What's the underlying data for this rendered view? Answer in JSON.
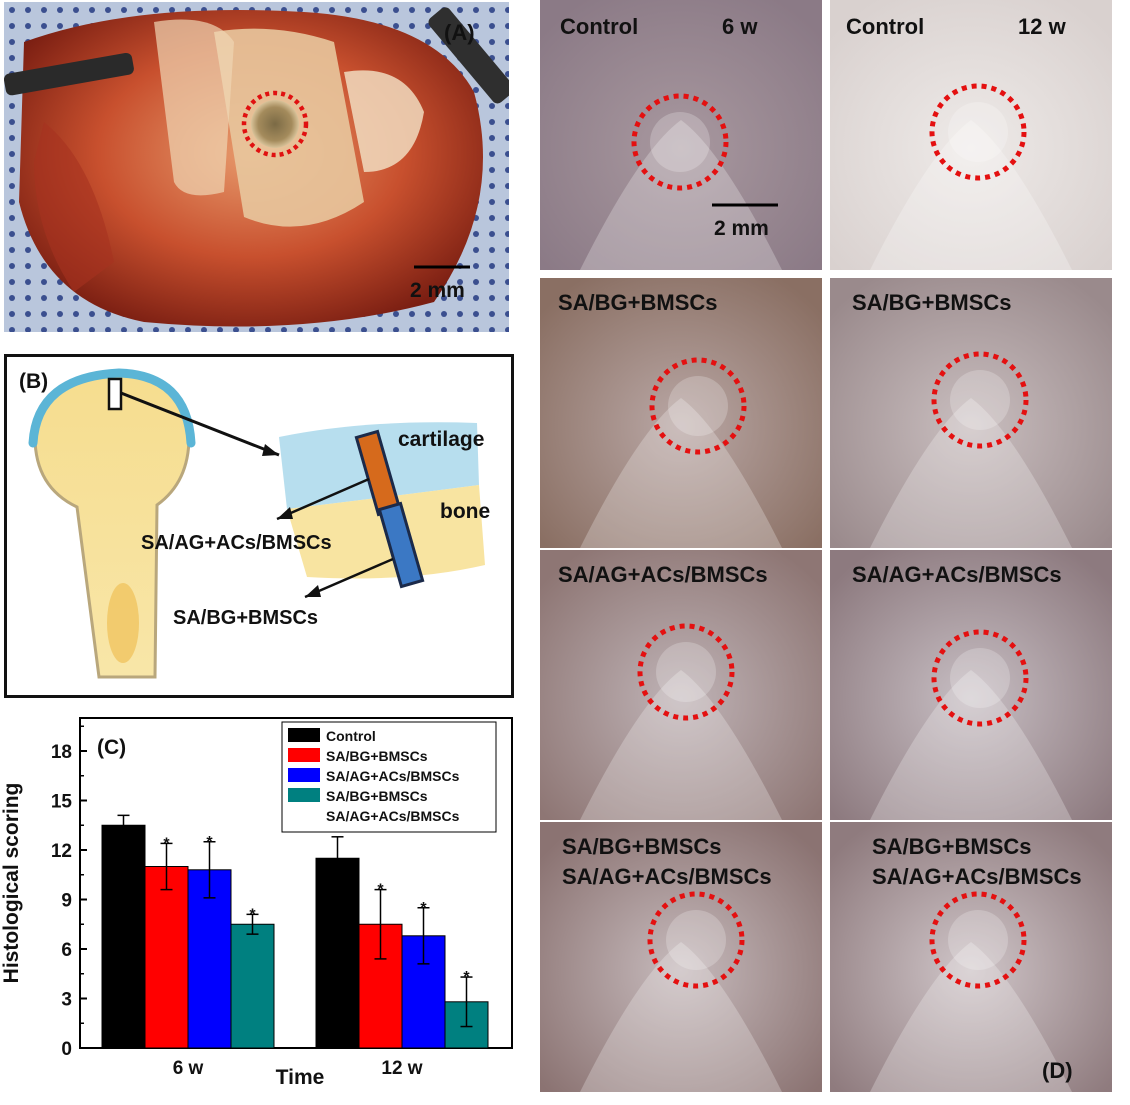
{
  "panel_a": {
    "label": "(A)",
    "scale_bar": "2 mm"
  },
  "panel_b": {
    "label": "(B)",
    "cartilage": "cartilage",
    "bone": "bone",
    "upper_material": "SA/AG+ACs/BMSCs",
    "lower_material": "SA/BG+BMSCs"
  },
  "panel_d": {
    "label": "(D)",
    "scale_bar": "2 mm",
    "tiles": [
      {
        "lines": [
          "Control",
          "6 w"
        ]
      },
      {
        "lines": [
          "Control",
          "12 w"
        ]
      },
      {
        "lines": [
          "SA/BG+BMSCs"
        ]
      },
      {
        "lines": [
          "SA/BG+BMSCs"
        ]
      },
      {
        "lines": [
          "SA/AG+ACs/BMSCs"
        ]
      },
      {
        "lines": [
          "SA/AG+ACs/BMSCs"
        ]
      },
      {
        "lines": [
          "SA/BG+BMSCs",
          "SA/AG+ACs/BMSCs"
        ]
      },
      {
        "lines": [
          "SA/BG+BMSCs",
          "SA/AG+ACs/BMSCs"
        ]
      }
    ]
  },
  "chart_data": {
    "type": "bar",
    "label": "(C)",
    "categories": [
      "6 w",
      "12 w"
    ],
    "xlabel": "Time",
    "ylabel": "Histological scoring",
    "ylim": [
      0,
      20
    ],
    "yticks": [
      0,
      3,
      6,
      9,
      12,
      15,
      18
    ],
    "legend_position": "top-right",
    "series": [
      {
        "name": "Control",
        "color": "#000000",
        "values": [
          13.5,
          11.5
        ],
        "errors": [
          0.6,
          1.3
        ],
        "significance": [
          "",
          ""
        ]
      },
      {
        "name": "SA/BG+BMSCs",
        "color": "#ff0000",
        "values": [
          11.0,
          7.5
        ],
        "errors": [
          1.4,
          2.1
        ],
        "significance": [
          "*",
          "*"
        ]
      },
      {
        "name": "SA/AG+ACs/BMSCs",
        "color": "#0000ff",
        "values": [
          10.8,
          6.8
        ],
        "errors": [
          1.7,
          1.7
        ],
        "significance": [
          "*",
          "*"
        ]
      },
      {
        "name": "SA/BG+BMSCs",
        "name_line2": "SA/AG+ACs/BMSCs",
        "color": "#008080",
        "values": [
          7.5,
          2.8
        ],
        "errors": [
          0.6,
          1.5
        ],
        "significance": [
          "*",
          "*"
        ]
      }
    ]
  }
}
